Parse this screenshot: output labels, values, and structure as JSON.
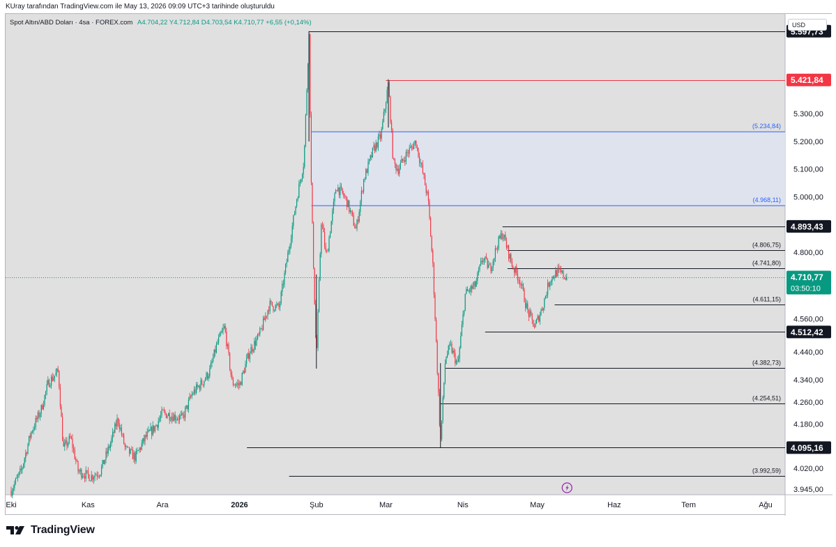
{
  "header": {
    "caption": "KUray tarafından TradingView.com ile May 13, 2026 09:09 UTC+3 tarihinde oluşturuldu"
  },
  "legend": {
    "symbol": "Spot Altın/ABD Doları · 4sa · FOREX.com",
    "ohlc": "A4.704,22  Y4.712,84  D4.703,54  K4.710,77  +6,55 (+0,14%)"
  },
  "currency": "USD",
  "brand": {
    "name": "TradingView"
  },
  "colors": {
    "up": "#089981",
    "down": "#f23645",
    "zone_fill": "#dfe3ee",
    "zone_line": "#2962ff",
    "red_level": "#f23645",
    "current_tag": "#089981",
    "dark_tag": "#131722"
  },
  "chart_data": {
    "type": "candlestick",
    "ylim": [
      3925,
      5660
    ],
    "x_axis": {
      "ticks": [
        {
          "label": "Eki",
          "bold": false
        },
        {
          "label": "Kas",
          "bold": false
        },
        {
          "label": "Ara",
          "bold": false
        },
        {
          "label": "2026",
          "bold": true
        },
        {
          "label": "Şub",
          "bold": false
        },
        {
          "label": "Mar",
          "bold": false
        },
        {
          "label": "Nis",
          "bold": false
        },
        {
          "label": "May",
          "bold": false
        },
        {
          "label": "Haz",
          "bold": false
        },
        {
          "label": "Tem",
          "bold": false
        },
        {
          "label": "Ağu",
          "bold": false
        }
      ]
    },
    "y_ticks": [
      {
        "value": 5300,
        "label": "5.300,00"
      },
      {
        "value": 5200,
        "label": "5.200,00"
      },
      {
        "value": 5100,
        "label": "5.100,00"
      },
      {
        "value": 5000,
        "label": "5.000,00"
      },
      {
        "value": 4800,
        "label": "4.800,00"
      },
      {
        "value": 4560,
        "label": "4.560,00"
      },
      {
        "value": 4440,
        "label": "4.440,00"
      },
      {
        "value": 4340,
        "label": "4.340,00"
      },
      {
        "value": 4260,
        "label": "4.260,00"
      },
      {
        "value": 4180,
        "label": "4.180,00"
      },
      {
        "value": 4020,
        "label": "4.020,00"
      },
      {
        "value": 3945,
        "label": "3.945,00"
      }
    ],
    "price_tags": [
      {
        "value": 5597.73,
        "label": "5.597,73",
        "style": "dark"
      },
      {
        "value": 5421.84,
        "label": "5.421,84",
        "style": "red"
      },
      {
        "value": 4893.43,
        "label": "4.893,43",
        "style": "dark"
      },
      {
        "value": 4512.42,
        "label": "4.512,42",
        "style": "dark"
      },
      {
        "value": 4095.16,
        "label": "4.095,16",
        "style": "dark"
      }
    ],
    "current_price": {
      "value": 4710.77,
      "label": "4.710,77",
      "countdown": "03:50:10"
    },
    "zone": {
      "top": 5234.84,
      "bottom": 4968.11,
      "top_label": "(5.234,84)",
      "bottom_label": "(4.968,11)"
    },
    "levels": [
      {
        "value": 5597.73,
        "label": "",
        "start": "peak",
        "color": "#131722"
      },
      {
        "value": 5421.84,
        "label": "",
        "start": "second-peak",
        "color": "#f23645"
      },
      {
        "value": 4893.43,
        "label": "",
        "start": "april-high",
        "color": "#131722"
      },
      {
        "value": 4806.75,
        "label": "(4.806,75)",
        "start": "april-high",
        "color": "#131722"
      },
      {
        "value": 4741.8,
        "label": "(4.741,80)",
        "start": "april-high",
        "color": "#131722"
      },
      {
        "value": 4611.15,
        "label": "(4.611,15)",
        "start": "may",
        "color": "#131722"
      },
      {
        "value": 4512.42,
        "label": "",
        "start": "april",
        "color": "#131722"
      },
      {
        "value": 4382.73,
        "label": "(4.382,73)",
        "start": "march-low",
        "color": "#131722"
      },
      {
        "value": 4254.51,
        "label": "(4.254,51)",
        "start": "march-low",
        "color": "#131722"
      },
      {
        "value": 4095.16,
        "label": "",
        "start": "january",
        "color": "#131722"
      },
      {
        "value": 3992.59,
        "label": "(3.992,59)",
        "start": "january",
        "color": "#131722"
      }
    ],
    "price_path": [
      {
        "date": "2025-10-01",
        "price": 3940
      },
      {
        "date": "2025-10-05",
        "price": 4010
      },
      {
        "date": "2025-10-09",
        "price": 4150
      },
      {
        "date": "2025-10-13",
        "price": 4230
      },
      {
        "date": "2025-10-16",
        "price": 4330
      },
      {
        "date": "2025-10-20",
        "price": 4370
      },
      {
        "date": "2025-10-22",
        "price": 4090
      },
      {
        "date": "2025-10-25",
        "price": 4130
      },
      {
        "date": "2025-10-28",
        "price": 4010
      },
      {
        "date": "2025-11-02",
        "price": 3990
      },
      {
        "date": "2025-11-06",
        "price": 4010
      },
      {
        "date": "2025-11-10",
        "price": 4110
      },
      {
        "date": "2025-11-13",
        "price": 4200
      },
      {
        "date": "2025-11-16",
        "price": 4090
      },
      {
        "date": "2025-11-20",
        "price": 4060
      },
      {
        "date": "2025-11-24",
        "price": 4130
      },
      {
        "date": "2025-11-28",
        "price": 4170
      },
      {
        "date": "2025-12-01",
        "price": 4220
      },
      {
        "date": "2025-12-05",
        "price": 4210
      },
      {
        "date": "2025-12-09",
        "price": 4200
      },
      {
        "date": "2025-12-13",
        "price": 4290
      },
      {
        "date": "2025-12-17",
        "price": 4330
      },
      {
        "date": "2025-12-20",
        "price": 4370
      },
      {
        "date": "2025-12-23",
        "price": 4470
      },
      {
        "date": "2025-12-26",
        "price": 4530
      },
      {
        "date": "2025-12-29",
        "price": 4330
      },
      {
        "date": "2026-01-01",
        "price": 4320
      },
      {
        "date": "2026-01-05",
        "price": 4440
      },
      {
        "date": "2026-01-09",
        "price": 4500
      },
      {
        "date": "2026-01-13",
        "price": 4610
      },
      {
        "date": "2026-01-17",
        "price": 4600
      },
      {
        "date": "2026-01-21",
        "price": 4820
      },
      {
        "date": "2026-01-24",
        "price": 4990
      },
      {
        "date": "2026-01-27",
        "price": 5130
      },
      {
        "date": "2026-01-29",
        "price": 5597
      },
      {
        "date": "2026-01-30",
        "price": 5000
      },
      {
        "date": "2026-02-01",
        "price": 4410
      },
      {
        "date": "2026-02-03",
        "price": 4920
      },
      {
        "date": "2026-02-05",
        "price": 4780
      },
      {
        "date": "2026-02-09",
        "price": 5040
      },
      {
        "date": "2026-02-13",
        "price": 4990
      },
      {
        "date": "2026-02-17",
        "price": 4880
      },
      {
        "date": "2026-02-20",
        "price": 5060
      },
      {
        "date": "2026-02-24",
        "price": 5170
      },
      {
        "date": "2026-02-27",
        "price": 5220
      },
      {
        "date": "2026-03-02",
        "price": 5410
      },
      {
        "date": "2026-03-04",
        "price": 5120
      },
      {
        "date": "2026-03-06",
        "price": 5100
      },
      {
        "date": "2026-03-09",
        "price": 5150
      },
      {
        "date": "2026-03-13",
        "price": 5200
      },
      {
        "date": "2026-03-16",
        "price": 5080
      },
      {
        "date": "2026-03-18",
        "price": 4990
      },
      {
        "date": "2026-03-20",
        "price": 4740
      },
      {
        "date": "2026-03-23",
        "price": 4110
      },
      {
        "date": "2026-03-25",
        "price": 4420
      },
      {
        "date": "2026-03-27",
        "price": 4460
      },
      {
        "date": "2026-03-30",
        "price": 4390
      },
      {
        "date": "2026-04-02",
        "price": 4650
      },
      {
        "date": "2026-04-06",
        "price": 4680
      },
      {
        "date": "2026-04-09",
        "price": 4780
      },
      {
        "date": "2026-04-12",
        "price": 4740
      },
      {
        "date": "2026-04-15",
        "price": 4830
      },
      {
        "date": "2026-04-17",
        "price": 4870
      },
      {
        "date": "2026-04-21",
        "price": 4750
      },
      {
        "date": "2026-04-24",
        "price": 4700
      },
      {
        "date": "2026-04-27",
        "price": 4590
      },
      {
        "date": "2026-04-30",
        "price": 4530
      },
      {
        "date": "2026-05-03",
        "price": 4600
      },
      {
        "date": "2026-05-06",
        "price": 4700
      },
      {
        "date": "2026-05-09",
        "price": 4730
      },
      {
        "date": "2026-05-13",
        "price": 4710
      }
    ]
  }
}
